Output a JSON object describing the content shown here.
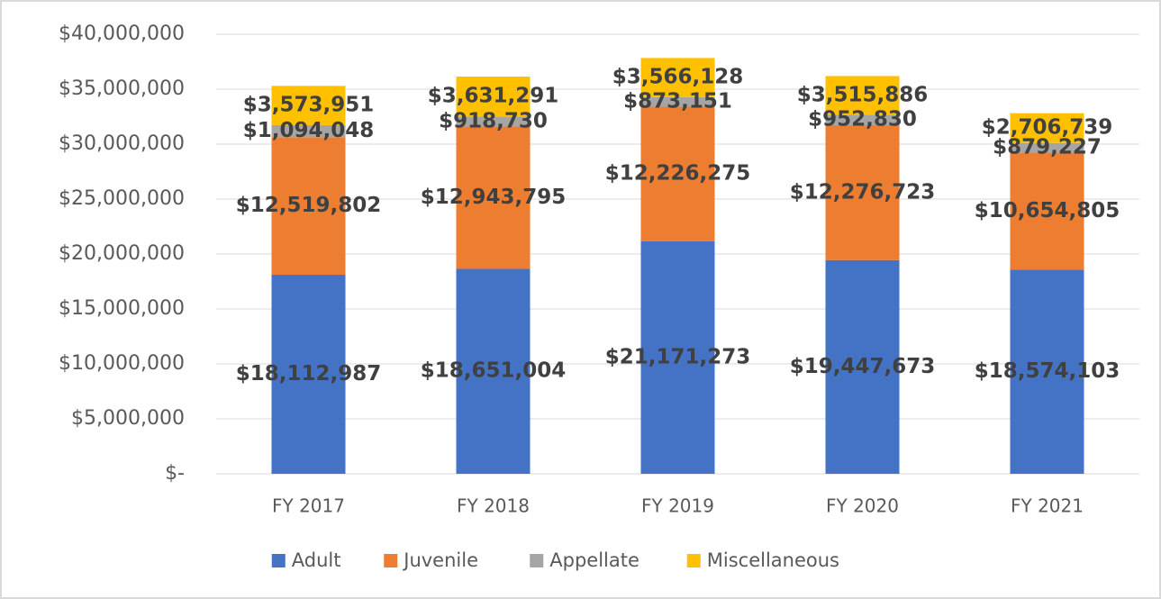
{
  "chart_data": {
    "type": "stacked_bar",
    "categories": [
      "FY 2017",
      "FY 2018",
      "FY 2019",
      "FY 2020",
      "FY 2021"
    ],
    "series": [
      {
        "name": "Adult",
        "color": "#4472c4",
        "values": [
          18112987,
          18651004,
          21171273,
          19447673,
          18574103
        ],
        "value_labels": [
          "$18,112,987",
          "$18,651,004",
          "$21,171,273",
          "$19,447,673",
          "$18,574,103"
        ]
      },
      {
        "name": "Juvenile",
        "color": "#ed7d31",
        "values": [
          12519802,
          12943795,
          12226275,
          12276723,
          10654805
        ],
        "value_labels": [
          "$12,519,802",
          "$12,943,795",
          "$12,226,275",
          "$12,276,723",
          "$10,654,805"
        ]
      },
      {
        "name": "Appellate",
        "color": "#a5a5a5",
        "values": [
          1094048,
          918730,
          873151,
          952830,
          879227
        ],
        "value_labels": [
          "$1,094,048",
          "$918,730",
          "$873,151",
          "$952,830",
          "$879,227"
        ]
      },
      {
        "name": "Miscellaneous",
        "color": "#ffc000",
        "values": [
          3573951,
          3631291,
          3566128,
          3515886,
          2706739
        ],
        "value_labels": [
          "$3,573,951",
          "$3,631,291",
          "$3,566,128",
          "$3,515,886",
          "$2,706,739"
        ]
      }
    ],
    "ylim": [
      0,
      40000000
    ],
    "yticks": [
      {
        "value": 0,
        "label": "$-"
      },
      {
        "value": 5000000,
        "label": "$5,000,000"
      },
      {
        "value": 10000000,
        "label": "$10,000,000"
      },
      {
        "value": 15000000,
        "label": "$15,000,000"
      },
      {
        "value": 20000000,
        "label": "$20,000,000"
      },
      {
        "value": 25000000,
        "label": "$25,000,000"
      },
      {
        "value": 30000000,
        "label": "$30,000,000"
      },
      {
        "value": 35000000,
        "label": "$35,000,000"
      },
      {
        "value": 40000000,
        "label": "$40,000,000"
      }
    ],
    "grid": true,
    "legend": "bottom"
  }
}
